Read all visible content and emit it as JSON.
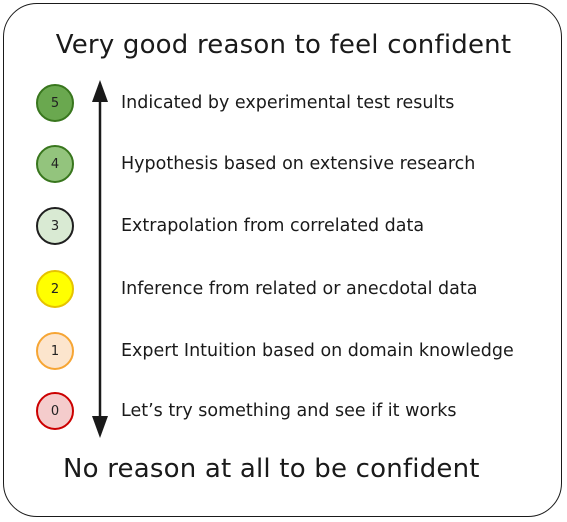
{
  "diagram": {
    "top_label": "Very good reason to feel confident",
    "bottom_label": "No reason at all to be confident",
    "levels": [
      {
        "score": "5",
        "description": "Indicated by experimental test results",
        "fill": "#6aa84f",
        "border": "#38761d"
      },
      {
        "score": "4",
        "description": "Hypothesis based on extensive research",
        "fill": "#93c47d",
        "border": "#38761d"
      },
      {
        "score": "3",
        "description": "Extrapolation from correlated data",
        "fill": "#d9ead3",
        "border": "#1f1f1f"
      },
      {
        "score": "2",
        "description": "Inference from related or anecdotal data",
        "fill": "#ffff00",
        "border": "#e6c200"
      },
      {
        "score": "1",
        "description": "Expert Intuition based on domain knowledge",
        "fill": "#fce5cd",
        "border": "#f6a534"
      },
      {
        "score": "0",
        "description": "Let’s try something and see if it works",
        "fill": "#f4cccc",
        "border": "#cc0000"
      }
    ]
  }
}
